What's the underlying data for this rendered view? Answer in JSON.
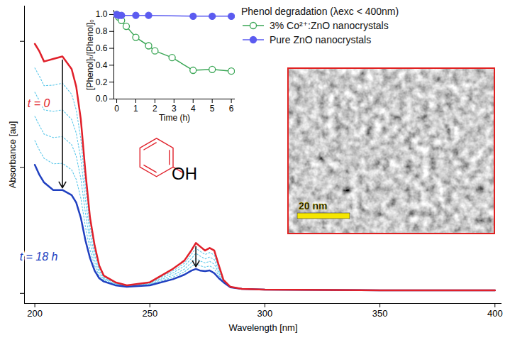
{
  "chart_data": [
    {
      "type": "line",
      "x_label": "Wavelength [nm]",
      "y_label": "Absorbance [au]",
      "xlim": [
        195.5,
        403
      ],
      "ylim": [
        -0.04,
        1.14
      ],
      "xticks": [
        200,
        250,
        300,
        350,
        400
      ],
      "yticks": [
        0,
        0.5,
        1
      ],
      "tick_labels": "x",
      "grid": false,
      "annotations": [
        "OH"
      ],
      "x": [
        200,
        202,
        204,
        208,
        212,
        216,
        218,
        220,
        222,
        224,
        226,
        228,
        230,
        235,
        240,
        250,
        260,
        265,
        268,
        270,
        272,
        274,
        276,
        278,
        280,
        282,
        285,
        290,
        300,
        350,
        400
      ],
      "series": [
        {
          "name": "t = 0",
          "color": "#e0202a",
          "line_style": "solid",
          "values": [
            0.99,
            0.96,
            0.92,
            0.93,
            0.94,
            0.89,
            0.82,
            0.69,
            0.48,
            0.3,
            0.19,
            0.11,
            0.07,
            0.044,
            0.032,
            0.044,
            0.097,
            0.13,
            0.17,
            0.2,
            0.185,
            0.17,
            0.18,
            0.17,
            0.11,
            0.053,
            0.026,
            0.018,
            0.015,
            0.012,
            0.012
          ]
        },
        {
          "color": "#5cc8ea",
          "line_style": "dotted",
          "values": [
            0.894,
            0.862,
            0.824,
            0.826,
            0.834,
            0.79,
            0.728,
            0.612,
            0.426,
            0.268,
            0.17,
            0.1,
            0.065,
            0.042,
            0.031,
            0.042,
            0.089,
            0.119,
            0.154,
            0.179,
            0.166,
            0.154,
            0.162,
            0.152,
            0.1,
            0.051,
            0.026,
            0.018,
            0.015,
            0.012,
            0.012
          ]
        },
        {
          "color": "#5cc8ea",
          "line_style": "dotted",
          "values": [
            0.798,
            0.764,
            0.728,
            0.722,
            0.728,
            0.69,
            0.636,
            0.534,
            0.372,
            0.236,
            0.15,
            0.09,
            0.061,
            0.039,
            0.03,
            0.039,
            0.081,
            0.108,
            0.138,
            0.159,
            0.147,
            0.137,
            0.144,
            0.134,
            0.09,
            0.049,
            0.025,
            0.018,
            0.015,
            0.012,
            0.012
          ]
        },
        {
          "color": "#5cc8ea",
          "line_style": "dotted",
          "values": [
            0.702,
            0.666,
            0.632,
            0.618,
            0.622,
            0.59,
            0.544,
            0.456,
            0.318,
            0.204,
            0.13,
            0.08,
            0.056,
            0.037,
            0.028,
            0.037,
            0.072,
            0.096,
            0.122,
            0.138,
            0.128,
            0.121,
            0.127,
            0.116,
            0.08,
            0.048,
            0.025,
            0.018,
            0.015,
            0.012,
            0.012
          ]
        },
        {
          "color": "#5cc8ea",
          "line_style": "dotted",
          "values": [
            0.606,
            0.568,
            0.536,
            0.514,
            0.516,
            0.49,
            0.452,
            0.378,
            0.264,
            0.172,
            0.11,
            0.07,
            0.052,
            0.034,
            0.027,
            0.034,
            0.064,
            0.085,
            0.106,
            0.118,
            0.109,
            0.104,
            0.109,
            0.098,
            0.07,
            0.046,
            0.024,
            0.018,
            0.015,
            0.012,
            0.012
          ]
        },
        {
          "name": "t = 18 h",
          "color": "#2040c0",
          "line_style": "solid",
          "values": [
            0.51,
            0.47,
            0.44,
            0.41,
            0.41,
            0.39,
            0.36,
            0.3,
            0.21,
            0.14,
            0.09,
            0.06,
            0.047,
            0.032,
            0.026,
            0.032,
            0.056,
            0.074,
            0.09,
            0.097,
            0.09,
            0.088,
            0.091,
            0.08,
            0.06,
            0.044,
            0.024,
            0.018,
            0.015,
            0.012,
            0.012
          ]
        }
      ]
    },
    {
      "type": "line",
      "title": "Phenol degradation (λexc < 400nm)",
      "x_label": "Time (h)",
      "y_label": "[Phenol]ₜ/[Phenol]₀",
      "xlim": [
        -0.15,
        6.2
      ],
      "ylim": [
        0,
        1.05
      ],
      "xticks": [
        0,
        1,
        2,
        3,
        4,
        5,
        6
      ],
      "yticks": [
        {
          "value": 0,
          "label": "0.0"
        },
        0.2,
        0.4,
        0.6,
        0.8,
        {
          "value": 1,
          "label": "1.0"
        }
      ],
      "grid": false,
      "legend": "right",
      "series": [
        {
          "name": "3% Co²⁺:ZnO nanocrystals",
          "color": "#3aa655",
          "marker": "open_circle",
          "x": [
            0,
            0.1,
            0.25,
            0.5,
            1,
            1.67,
            2,
            2.9,
            4,
            5,
            6
          ],
          "values": [
            1.0,
            0.97,
            0.93,
            0.86,
            0.73,
            0.63,
            0.57,
            0.49,
            0.34,
            0.35,
            0.33
          ]
        },
        {
          "name": "Pure ZnO nanocrystals",
          "color": "#5b5bf0",
          "marker": "filled_circle",
          "x": [
            0,
            0.1,
            0.25,
            1,
            1.67,
            4,
            5,
            6
          ],
          "values": [
            1.0,
            0.99,
            0.99,
            0.99,
            0.99,
            0.98,
            0.98,
            0.98
          ]
        }
      ]
    }
  ],
  "image_inset": {
    "scale_bar": "20 nm"
  }
}
